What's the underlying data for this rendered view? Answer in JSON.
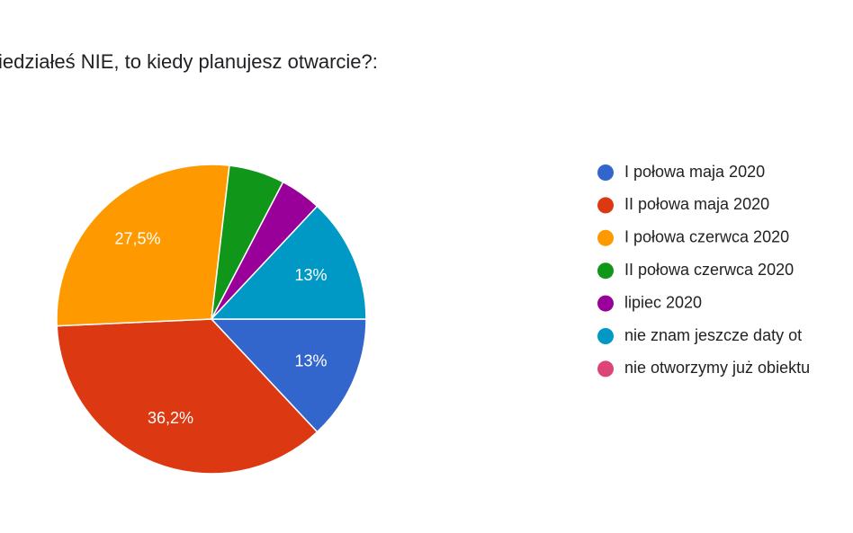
{
  "chart_data": {
    "type": "pie",
    "title": "iedziałeś NIE, to kiedy planujesz otwarcie?:",
    "categories": [
      "I połowa maja 2020",
      "II połowa maja 2020",
      "I połowa czerwca 2020",
      "II połowa czerwca 2020",
      "lipiec 2020",
      "nie znam jeszcze daty ot",
      "nie otworzymy już obiektu"
    ],
    "values": [
      13,
      36.2,
      27.5,
      5.8,
      4.3,
      13,
      0
    ],
    "value_labels": [
      "13%",
      "36,2%",
      "27,5%",
      null,
      null,
      "13%",
      null
    ],
    "colors": [
      "#3366cc",
      "#dc3912",
      "#ff9900",
      "#109618",
      "#990099",
      "#0099c6",
      "#dd4477"
    ],
    "legend": "right"
  }
}
